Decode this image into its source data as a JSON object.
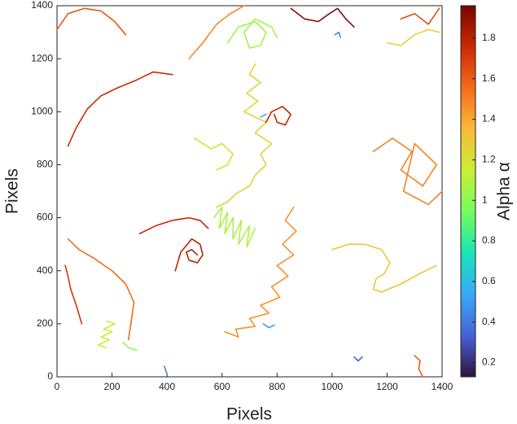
{
  "chart_data": {
    "type": "trajectory",
    "xlabel": "Pixels",
    "ylabel": "Pixels",
    "colorbar_label": "Alpha α",
    "xlim": [
      0,
      1400
    ],
    "ylim": [
      0,
      1400
    ],
    "xticks": [
      0,
      200,
      400,
      600,
      800,
      1000,
      1200,
      1400
    ],
    "yticks": [
      0,
      200,
      400,
      600,
      800,
      1000,
      1200,
      1400
    ],
    "clim": [
      0.13,
      1.96
    ],
    "cticks": [
      0.2,
      0.4,
      0.6,
      0.8,
      1,
      1.2,
      1.4,
      1.6,
      1.8
    ],
    "colormap": [
      "#30123b",
      "#4662d7",
      "#36aaf9",
      "#1ae4b6",
      "#72fe5e",
      "#c8ef34",
      "#faba39",
      "#f66b19",
      "#ca2a04",
      "#7a0403"
    ],
    "series": [
      {
        "alpha": 1.62,
        "x": [
          0,
          40,
          100,
          160,
          210,
          250
        ],
        "y": [
          1310,
          1370,
          1390,
          1380,
          1340,
          1290
        ]
      },
      {
        "alpha": 1.75,
        "x": [
          40,
          70,
          110,
          160,
          220,
          290,
          350,
          420
        ],
        "y": [
          870,
          940,
          1010,
          1060,
          1090,
          1120,
          1150,
          1140
        ]
      },
      {
        "alpha": 1.25,
        "x": [
          720,
          700,
          740,
          690,
          730,
          680,
          760,
          720,
          780,
          740,
          760,
          720,
          700,
          650,
          620,
          580
        ],
        "y": [
          1180,
          1140,
          1110,
          1070,
          1040,
          1000,
          960,
          920,
          880,
          840,
          800,
          760,
          720,
          690,
          660,
          640
        ]
      },
      {
        "alpha": 1.08,
        "x": [
          570,
          600,
          590,
          620,
          610,
          640,
          640,
          670,
          660,
          700,
          690,
          720
        ],
        "y": [
          600,
          640,
          560,
          620,
          540,
          600,
          520,
          590,
          500,
          570,
          490,
          560
        ]
      },
      {
        "alpha": 1.45,
        "x": [
          860,
          830,
          870,
          820,
          860,
          800,
          840,
          780,
          810,
          740,
          770,
          700,
          720,
          650,
          660,
          610
        ],
        "y": [
          640,
          590,
          550,
          500,
          460,
          420,
          380,
          340,
          300,
          270,
          240,
          220,
          190,
          180,
          150,
          170
        ]
      },
      {
        "alpha": 1.8,
        "x": [
          430,
          450,
          490,
          520,
          530,
          510,
          480,
          470,
          490,
          510
        ],
        "y": [
          400,
          470,
          520,
          500,
          460,
          430,
          440,
          470,
          480,
          460
        ]
      },
      {
        "alpha": 1.3,
        "x": [
          1000,
          1060,
          1120,
          1180,
          1210,
          1190,
          1160,
          1150,
          1180,
          1250,
          1320,
          1380
        ],
        "y": [
          480,
          500,
          500,
          480,
          430,
          390,
          370,
          330,
          320,
          350,
          390,
          420
        ]
      },
      {
        "alpha": 1.5,
        "x": [
          1150,
          1220,
          1290,
          1250,
          1330,
          1380,
          1300,
          1260,
          1350,
          1400
        ],
        "y": [
          850,
          900,
          850,
          780,
          720,
          800,
          880,
          700,
          650,
          700
        ]
      },
      {
        "alpha": 1.72,
        "x": [
          90,
          70,
          50,
          40,
          30
        ],
        "y": [
          200,
          270,
          330,
          380,
          420
        ]
      },
      {
        "alpha": 1.55,
        "x": [
          40,
          80,
          130,
          200,
          250,
          280,
          270,
          260
        ],
        "y": [
          520,
          480,
          450,
          400,
          350,
          280,
          210,
          140
        ]
      },
      {
        "alpha": 1.92,
        "x": [
          850,
          900,
          950,
          990,
          1020,
          1050,
          1080
        ],
        "y": [
          1390,
          1350,
          1340,
          1370,
          1390,
          1350,
          1320
        ]
      },
      {
        "alpha": 1.05,
        "x": [
          620,
          660,
          720,
          760,
          740,
          700,
          680,
          720,
          780,
          800
        ],
        "y": [
          1260,
          1320,
          1340,
          1300,
          1250,
          1240,
          1300,
          1350,
          1320,
          1280
        ]
      },
      {
        "alpha": 0.42,
        "x": [
          390,
          395,
          400
        ],
        "y": [
          40,
          25,
          10
        ]
      },
      {
        "alpha": 0.35,
        "x": [
          1080,
          1095,
          1110
        ],
        "y": [
          75,
          60,
          75
        ]
      },
      {
        "alpha": 0.5,
        "x": [
          750,
          770,
          790
        ],
        "y": [
          200,
          185,
          195
        ]
      },
      {
        "alpha": 0.45,
        "x": [
          1010,
          1025,
          1030
        ],
        "y": [
          1290,
          1300,
          1280
        ]
      },
      {
        "alpha": 1.15,
        "x": [
          180,
          210,
          170,
          200,
          160,
          190,
          150,
          180
        ],
        "y": [
          210,
          200,
          180,
          170,
          150,
          140,
          120,
          110
        ]
      },
      {
        "alpha": 1.78,
        "x": [
          760,
          780,
          820,
          850,
          830,
          800,
          790
        ],
        "y": [
          960,
          1000,
          1020,
          990,
          950,
          960,
          990
        ]
      },
      {
        "alpha": 1.6,
        "x": [
          1300,
          1320,
          1315,
          1330
        ],
        "y": [
          80,
          60,
          30,
          0
        ]
      },
      {
        "alpha": 1.48,
        "x": [
          480,
          530,
          580,
          630,
          680
        ],
        "y": [
          1200,
          1260,
          1330,
          1370,
          1400
        ]
      },
      {
        "alpha": 1.25,
        "x": [
          1200,
          1250,
          1300,
          1350,
          1390
        ],
        "y": [
          1260,
          1250,
          1290,
          1310,
          1300
        ]
      },
      {
        "alpha": 1.76,
        "x": [
          300,
          360,
          420,
          480,
          520,
          550
        ],
        "y": [
          540,
          570,
          590,
          600,
          590,
          560
        ]
      },
      {
        "alpha": 1.65,
        "x": [
          1250,
          1300,
          1350,
          1390
        ],
        "y": [
          1350,
          1370,
          1330,
          1390
        ]
      },
      {
        "alpha": 1.2,
        "x": [
          500,
          560,
          600,
          640,
          620,
          580
        ],
        "y": [
          900,
          860,
          880,
          840,
          800,
          780
        ]
      },
      {
        "alpha": 0.55,
        "x": [
          740,
          760
        ],
        "y": [
          980,
          990
        ]
      },
      {
        "alpha": 1.0,
        "x": [
          240,
          260,
          290
        ],
        "y": [
          130,
          110,
          100
        ]
      }
    ]
  }
}
